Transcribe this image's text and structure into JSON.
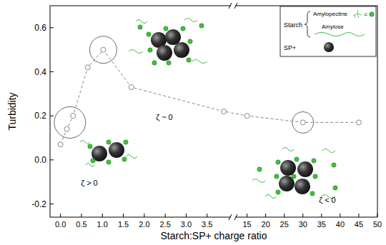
{
  "chart_data": {
    "type": "line",
    "x_label": "Starch:SP+ charge ratio",
    "y_label": "Turbidity",
    "x": [
      0.0,
      0.15,
      0.3,
      0.65,
      1.02,
      1.69,
      3.9,
      15,
      30,
      45
    ],
    "values": [
      0.07,
      0.14,
      0.2,
      0.42,
      0.5,
      0.33,
      0.22,
      0.2,
      0.17,
      0.17
    ],
    "color": "#888888",
    "marker": "circle-open",
    "line_style": "dashed",
    "xlim": [
      [
        -0.25,
        4.05
      ],
      [
        12,
        50
      ]
    ],
    "xticks": [
      [
        {
          "value": 0,
          "label": "0.0"
        },
        0.5,
        {
          "value": 1,
          "label": "1.0"
        },
        1.5,
        {
          "value": 2,
          "label": "2.0"
        },
        2.5,
        {
          "value": 3,
          "label": "3.0"
        },
        3.5
      ],
      [
        15,
        20,
        25,
        30,
        35,
        40,
        45,
        50
      ]
    ],
    "ylim": [
      -0.26,
      0.7
    ],
    "yticks": [
      -0.2,
      {
        "value": 0,
        "label": "0.0"
      },
      0.2,
      0.4,
      0.6
    ],
    "grid": false,
    "annotations": [
      "ζ > 0",
      "ζ ~ 0",
      "ζ < 0"
    ],
    "inset": {
      "title": "Starch",
      "items": [
        "Amylopectine",
        "Amylose",
        "SP+"
      ],
      "symbol": "="
    }
  }
}
